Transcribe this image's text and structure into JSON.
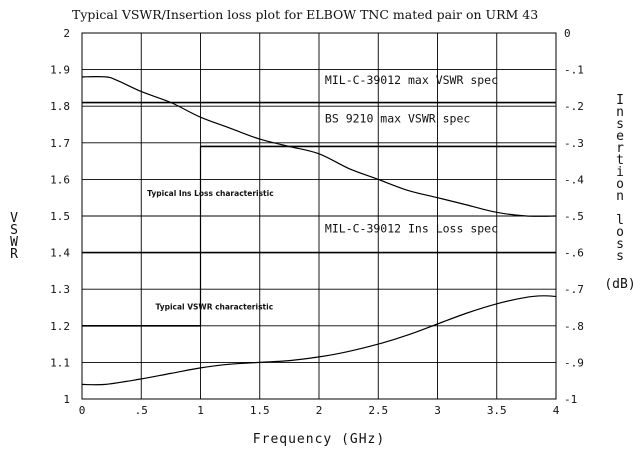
{
  "chart_data": {
    "type": "line",
    "title": "Typical VSWR/Insertion loss plot for ELBOW TNC mated pair on URM 43",
    "xlabel": "Frequency (GHz)",
    "ylabel": "VSWR",
    "y2label": "Insertion loss",
    "y2unit": "(dB)",
    "xlim": [
      0,
      4
    ],
    "ylim": [
      1,
      2
    ],
    "y2lim": [
      -1,
      0
    ],
    "grid": true,
    "x_ticks": [
      {
        "value": 0,
        "label": "0"
      },
      {
        "value": 0.5,
        "label": ".5"
      },
      {
        "value": 1,
        "label": "1"
      },
      {
        "value": 1.5,
        "label": "1.5"
      },
      {
        "value": 2,
        "label": "2"
      },
      {
        "value": 2.5,
        "label": "2.5"
      },
      {
        "value": 3,
        "label": "3"
      },
      {
        "value": 3.5,
        "label": "3.5"
      },
      {
        "value": 4,
        "label": "4"
      }
    ],
    "y_ticks": [
      {
        "value": 1,
        "label": "1"
      },
      {
        "value": 1.1,
        "label": "1.1"
      },
      {
        "value": 1.2,
        "label": "1.2"
      },
      {
        "value": 1.3,
        "label": "1.3"
      },
      {
        "value": 1.4,
        "label": "1.4"
      },
      {
        "value": 1.5,
        "label": "1.5"
      },
      {
        "value": 1.6,
        "label": "1.6"
      },
      {
        "value": 1.7,
        "label": "1.7"
      },
      {
        "value": 1.8,
        "label": "1.8"
      },
      {
        "value": 1.9,
        "label": "1.9"
      },
      {
        "value": 2,
        "label": "2"
      }
    ],
    "y2_ticks": [
      {
        "value": 0,
        "label": "0"
      },
      {
        "value": -0.1,
        "label": "-.1"
      },
      {
        "value": -0.2,
        "label": "-.2"
      },
      {
        "value": -0.3,
        "label": "-.3"
      },
      {
        "value": -0.4,
        "label": "-.4"
      },
      {
        "value": -0.5,
        "label": "-.5"
      },
      {
        "value": -0.6,
        "label": "-.6"
      },
      {
        "value": -0.7,
        "label": "-.7"
      },
      {
        "value": -0.8,
        "label": "-.8"
      },
      {
        "value": -0.9,
        "label": "-.9"
      },
      {
        "value": -1,
        "label": "-1"
      }
    ],
    "series": [
      {
        "name": "Typical Ins Loss characteristic",
        "axis": "right",
        "x": [
          0,
          0.2,
          0.3,
          0.5,
          0.75,
          1,
          1.25,
          1.5,
          1.75,
          2,
          2.25,
          2.5,
          2.75,
          3,
          3.25,
          3.5,
          3.75,
          4
        ],
        "values": [
          -0.12,
          -0.12,
          -0.13,
          -0.16,
          -0.19,
          -0.23,
          -0.26,
          -0.29,
          -0.31,
          -0.33,
          -0.37,
          -0.4,
          -0.43,
          -0.45,
          -0.47,
          -0.49,
          -0.5,
          -0.5
        ]
      },
      {
        "name": "Typical VSWR characteristic",
        "axis": "left",
        "x": [
          0,
          0.2,
          0.5,
          0.75,
          1,
          1.25,
          1.5,
          1.75,
          2,
          2.25,
          2.5,
          2.75,
          3,
          3.25,
          3.5,
          3.75,
          3.9,
          4
        ],
        "values": [
          1.04,
          1.04,
          1.055,
          1.07,
          1.085,
          1.095,
          1.1,
          1.105,
          1.115,
          1.13,
          1.15,
          1.175,
          1.205,
          1.235,
          1.26,
          1.278,
          1.282,
          1.28
        ]
      }
    ],
    "reference_lines": [
      {
        "name": "MIL-C-39012 max VSWR spec",
        "axis": "left",
        "segments": [
          {
            "x": [
              0,
              4
            ],
            "value": 1.81
          }
        ]
      },
      {
        "name": "BS 9210 max VSWR spec",
        "axis": "left",
        "segments": [
          {
            "x": [
              0,
              1
            ],
            "value": 1.2
          },
          {
            "x": [
              1,
              4
            ],
            "value": 1.69
          }
        ]
      },
      {
        "name": "MIL-C-39012 Ins Loss spec",
        "axis": "right",
        "segments": [
          {
            "x": [
              0,
              4
            ],
            "value": -0.6
          }
        ]
      }
    ],
    "annotations": [
      {
        "text": "MIL-C-39012 max VSWR spec",
        "x": 2.05,
        "y": 1.86
      },
      {
        "text": "BS 9210 max VSWR spec",
        "x": 2.05,
        "y": 1.755
      },
      {
        "text": "Typical Ins Loss characteristic",
        "x": 0.55,
        "y": 1.555
      },
      {
        "text": "MIL-C-39012 Ins Loss spec",
        "x": 2.05,
        "y": 1.455
      },
      {
        "text": "Typical VSWR characteristic",
        "x": 0.62,
        "y": 1.245
      }
    ]
  }
}
